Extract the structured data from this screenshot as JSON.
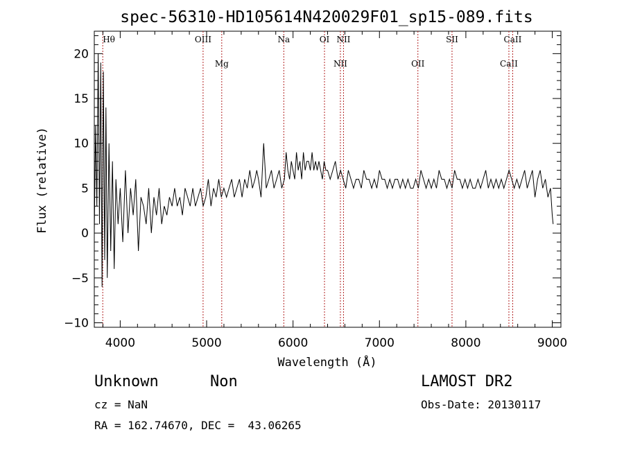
{
  "chart_data": {
    "type": "line",
    "title": "spec-56310-HD105614N420029F01_sp15-089.fits",
    "xlabel": "Wavelength (Å)",
    "ylabel": "Flux (relative)",
    "xlim": [
      3700,
      9100
    ],
    "ylim": [
      -10.5,
      22.5
    ],
    "x_ticks": [
      4000,
      5000,
      6000,
      7000,
      8000,
      9000
    ],
    "y_ticks": [
      -10,
      -5,
      0,
      5,
      10,
      15,
      20
    ],
    "grid": false,
    "line_color": "#000000",
    "marker_color": "#b22222",
    "spectral_lines": [
      {
        "label": "Hθ",
        "wavelength": 3798,
        "row": "upper"
      },
      {
        "label": "OIII",
        "wavelength": 4959,
        "row": "upper"
      },
      {
        "label": "Mg",
        "wavelength": 5175,
        "row": "lower"
      },
      {
        "label": "Na",
        "wavelength": 5893,
        "row": "upper"
      },
      {
        "label": "OI",
        "wavelength": 6364,
        "row": "upper"
      },
      {
        "label": "NII",
        "wavelength": 6548,
        "row": "lower"
      },
      {
        "label": "NII",
        "wavelength": 6584,
        "row": "upper"
      },
      {
        "label": "OII",
        "wavelength": 7445,
        "row": "lower"
      },
      {
        "label": "SII",
        "wavelength": 7840,
        "row": "upper"
      },
      {
        "label": "CaII",
        "wavelength": 8498,
        "row": "lower"
      },
      {
        "label": "CaII",
        "wavelength": 8542,
        "row": "upper"
      }
    ],
    "series": [
      {
        "x": [
          3700,
          3715,
          3730,
          3745,
          3760,
          3775,
          3790,
          3805,
          3820,
          3835,
          3850,
          3870,
          3890,
          3910,
          3930,
          3950,
          3975,
          4000,
          4030,
          4060,
          4090,
          4120,
          4150,
          4180,
          4210,
          4240,
          4270,
          4300,
          4330,
          4360,
          4390,
          4420,
          4450,
          4480,
          4510,
          4540,
          4570,
          4600,
          4630,
          4660,
          4690,
          4720,
          4750,
          4780,
          4810,
          4840,
          4870,
          4900,
          4930,
          4960,
          4990,
          5020,
          5050,
          5080,
          5110,
          5140,
          5170,
          5200,
          5230,
          5260,
          5290,
          5320,
          5350,
          5380,
          5410,
          5440,
          5470,
          5500,
          5530,
          5560,
          5580,
          5600,
          5630,
          5660,
          5690,
          5720,
          5750,
          5780,
          5810,
          5840,
          5870,
          5900,
          5920,
          5940,
          5960,
          5980,
          6000,
          6020,
          6040,
          6060,
          6080,
          6100,
          6120,
          6140,
          6160,
          6180,
          6200,
          6220,
          6240,
          6260,
          6280,
          6300,
          6320,
          6340,
          6360,
          6380,
          6400,
          6430,
          6460,
          6490,
          6520,
          6550,
          6580,
          6610,
          6640,
          6670,
          6700,
          6730,
          6760,
          6790,
          6820,
          6850,
          6880,
          6910,
          6940,
          6970,
          7000,
          7030,
          7060,
          7090,
          7120,
          7150,
          7180,
          7210,
          7240,
          7270,
          7300,
          7330,
          7360,
          7390,
          7420,
          7450,
          7480,
          7510,
          7540,
          7570,
          7600,
          7630,
          7660,
          7690,
          7720,
          7750,
          7780,
          7810,
          7840,
          7870,
          7900,
          7930,
          7960,
          7990,
          8020,
          8050,
          8080,
          8110,
          8140,
          8170,
          8200,
          8230,
          8260,
          8290,
          8320,
          8350,
          8380,
          8410,
          8440,
          8470,
          8500,
          8530,
          8560,
          8590,
          8620,
          8650,
          8680,
          8710,
          8740,
          8770,
          8800,
          8830,
          8860,
          8890,
          8920,
          8950,
          8980,
          9000,
          9010
        ],
        "y": [
          0,
          12,
          3,
          20,
          1,
          19,
          -6,
          18,
          -3,
          14,
          -5,
          10,
          -2,
          8,
          -4,
          6,
          1,
          5,
          -1,
          7,
          0,
          5,
          2,
          6,
          -2,
          4,
          3,
          1,
          5,
          0,
          4,
          2,
          5,
          1,
          3,
          2,
          4,
          3,
          5,
          3,
          4,
          2,
          5,
          4,
          3,
          5,
          3,
          4,
          5,
          3,
          4,
          6,
          3,
          5,
          4,
          6,
          4,
          5,
          4,
          5,
          6,
          4,
          5,
          6,
          4,
          6,
          5,
          7,
          5,
          6,
          7,
          6,
          4,
          10,
          5,
          6,
          7,
          5,
          6,
          7,
          5,
          6,
          9,
          7,
          6,
          8,
          7,
          6,
          9,
          7,
          8,
          6,
          9,
          7,
          8,
          8,
          7,
          9,
          7,
          8,
          7,
          8,
          7,
          6,
          8,
          7,
          7,
          6,
          7,
          8,
          6,
          7,
          6,
          5,
          7,
          6,
          5,
          6,
          6,
          5,
          7,
          6,
          6,
          5,
          6,
          5,
          7,
          6,
          6,
          5,
          6,
          5,
          6,
          6,
          5,
          6,
          5,
          6,
          5,
          5,
          6,
          5,
          7,
          6,
          5,
          6,
          5,
          6,
          5,
          7,
          6,
          6,
          5,
          6,
          5,
          7,
          6,
          6,
          5,
          6,
          5,
          6,
          5,
          5,
          6,
          5,
          6,
          7,
          5,
          6,
          5,
          6,
          5,
          6,
          5,
          6,
          7,
          6,
          5,
          6,
          5,
          6,
          7,
          5,
          6,
          7,
          4,
          6,
          7,
          5,
          6,
          4,
          5,
          2,
          1
        ]
      }
    ]
  },
  "info": {
    "object_class": "Unknown",
    "object_subclass": "Non",
    "survey": "LAMOST DR2",
    "cz": "cz = NaN",
    "obs_date": "Obs-Date: 20130117",
    "coords": "RA = 162.74670, DEC =  43.06265"
  }
}
